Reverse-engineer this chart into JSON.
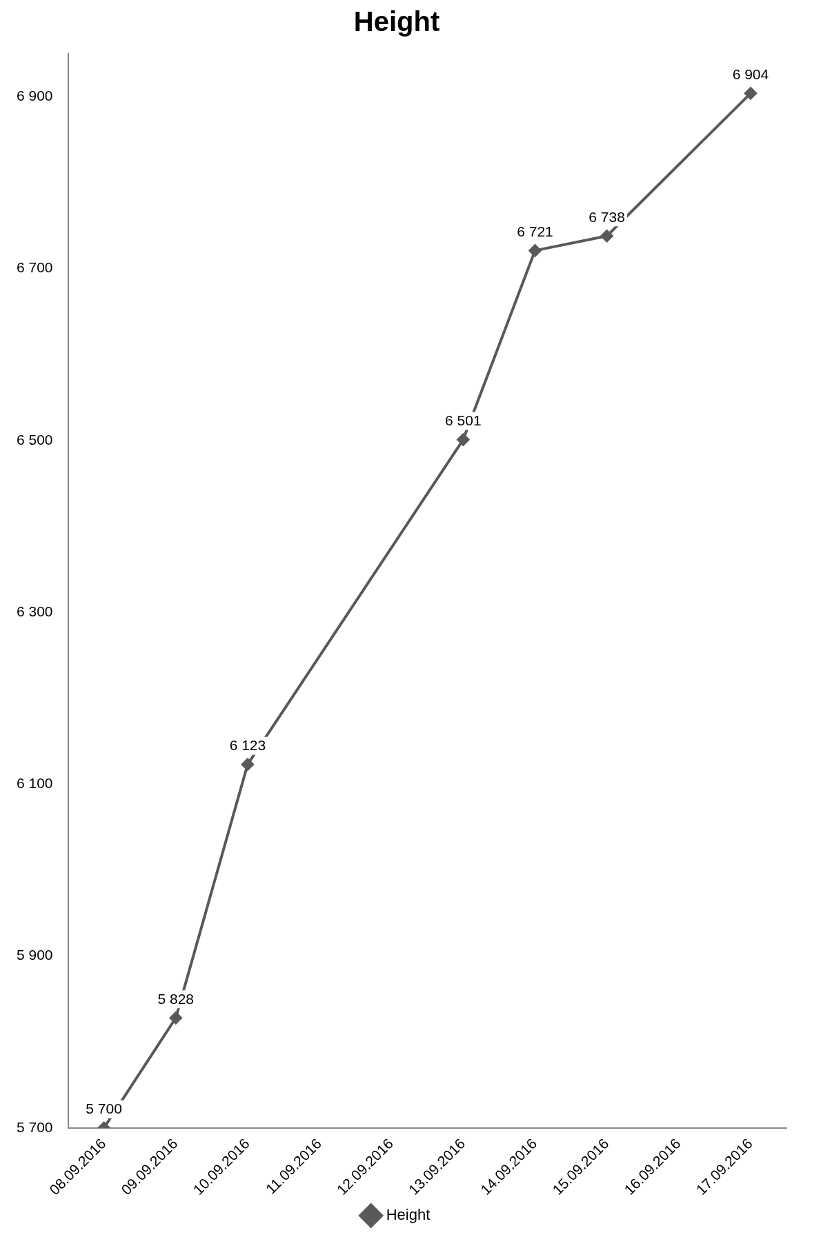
{
  "chart_data": {
    "type": "line",
    "title": "Height",
    "x": [
      "2016-09-08",
      "2016-09-09",
      "2016-09-10",
      "2016-09-13",
      "2016-09-14",
      "2016-09-15",
      "2016-09-17"
    ],
    "series": [
      {
        "name": "Height",
        "color": "#595959",
        "values": [
          5700,
          5828,
          6123,
          6501,
          6721,
          6738,
          6904
        ],
        "value_labels": [
          "5 700",
          "5 828",
          "6 123",
          "6 501",
          "6 721",
          "6 738",
          "6 904"
        ]
      }
    ],
    "xlim": [
      "2016-09-07T12:00",
      "2016-09-17T12:00"
    ],
    "xticks": [
      {
        "value": "2016-09-08",
        "label": "08.09.2016"
      },
      {
        "value": "2016-09-09",
        "label": "09.09.2016"
      },
      {
        "value": "2016-09-10",
        "label": "10.09.2016"
      },
      {
        "value": "2016-09-11",
        "label": "11.09.2016"
      },
      {
        "value": "2016-09-12",
        "label": "12.09.2016"
      },
      {
        "value": "2016-09-13",
        "label": "13.09.2016"
      },
      {
        "value": "2016-09-14",
        "label": "14.09.2016"
      },
      {
        "value": "2016-09-15",
        "label": "15.09.2016"
      },
      {
        "value": "2016-09-16",
        "label": "16.09.2016"
      },
      {
        "value": "2016-09-17",
        "label": "17.09.2016"
      }
    ],
    "ylim": [
      5700,
      6950
    ],
    "yticks": [
      {
        "value": 5700,
        "label": "5 700"
      },
      {
        "value": 5900,
        "label": "5 900"
      },
      {
        "value": 6100,
        "label": "6 100"
      },
      {
        "value": 6300,
        "label": "6 300"
      },
      {
        "value": 6500,
        "label": "6 500"
      },
      {
        "value": 6700,
        "label": "6 700"
      },
      {
        "value": 6900,
        "label": "6 900"
      }
    ],
    "grid": false,
    "legend": "bottom",
    "marker": "diamond",
    "line_style": "solid"
  }
}
